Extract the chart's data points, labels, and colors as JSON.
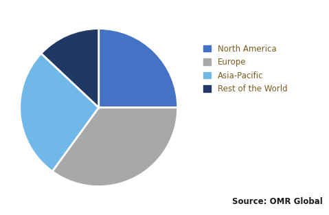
{
  "labels": [
    "North America",
    "Europe",
    "Asia-Pacific",
    "Rest of the World"
  ],
  "sizes": [
    25,
    35,
    27,
    13
  ],
  "colors": [
    "#4472c4",
    "#a8a8a8",
    "#70b8e8",
    "#1f3864"
  ],
  "startangle": 90,
  "source_text": "Source: OMR Global",
  "source_fontsize": 8.5,
  "legend_fontsize": 8.5,
  "legend_text_color": "#7a5c1e",
  "source_text_color": "#1a1a1a",
  "background_color": "#ffffff",
  "wedge_edge_color": "#ffffff",
  "wedge_linewidth": 2.0
}
